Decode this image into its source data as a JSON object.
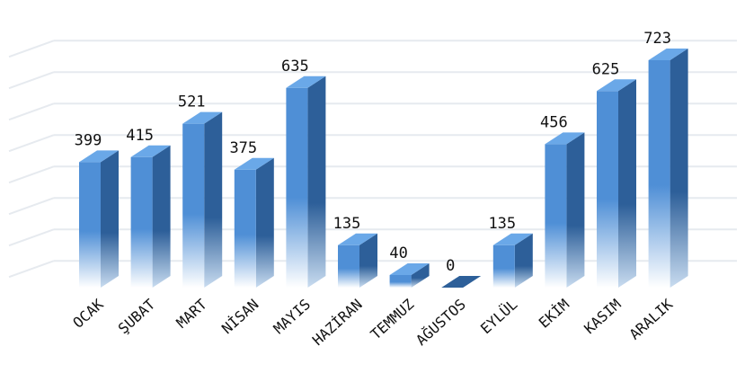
{
  "chart_data": {
    "type": "bar",
    "title": "",
    "xlabel": "",
    "ylabel": "",
    "categories": [
      "OCAK",
      "ŞUBAT",
      "MART",
      "NİSAN",
      "MAYIS",
      "HAZİRAN",
      "TEMMUZ",
      "AĞUSTOS",
      "EYLÜL",
      "EKİM",
      "KASIM",
      "ARALIK"
    ],
    "values": [
      399,
      415,
      521,
      375,
      635,
      135,
      40,
      0,
      135,
      456,
      625,
      723
    ],
    "ylim": [
      0,
      800
    ],
    "grid": true,
    "legend": "none",
    "data_labels": true,
    "three_d": true
  },
  "colors": {
    "bar_front_top": "#4f8fd6",
    "bar_front_bottom": "#ffffff",
    "bar_side": "#2d5f99",
    "bar_top": "#6aa8e8",
    "grid": "#e6eaef"
  }
}
